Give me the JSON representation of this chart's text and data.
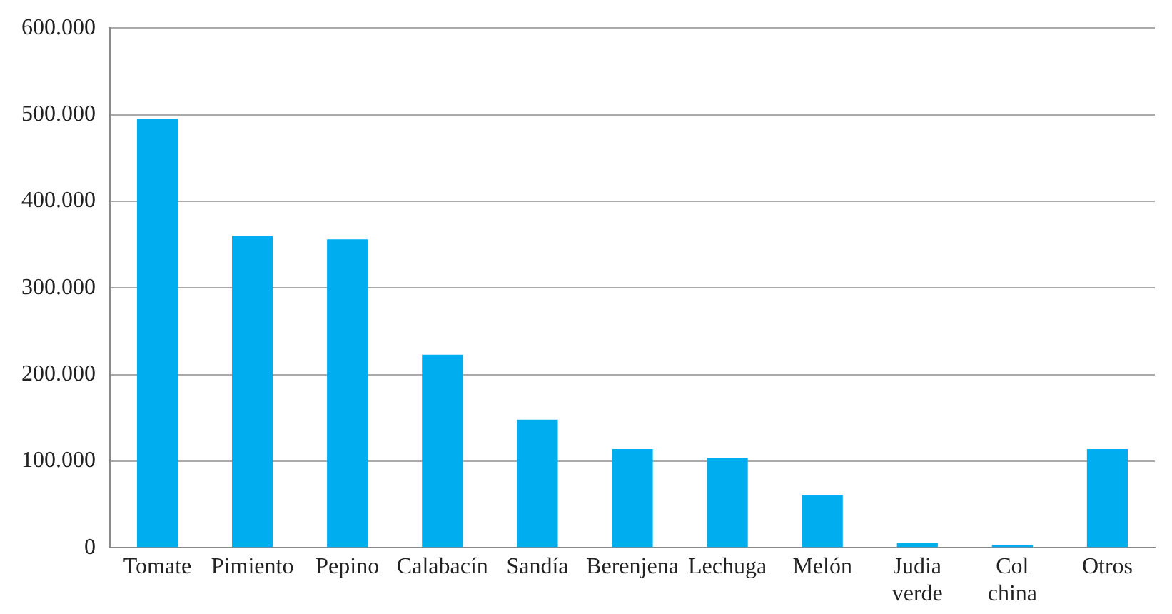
{
  "chart_data": {
    "type": "bar",
    "categories": [
      "Tomate",
      "Pimiento",
      "Pepino",
      "Calabacín",
      "Sandía",
      "Berenjena",
      "Lechuga",
      "Melón",
      "Judia verde",
      "Col china",
      "Otros"
    ],
    "values": [
      495000,
      360000,
      356000,
      223000,
      148000,
      114000,
      104000,
      61000,
      6000,
      3000,
      114000
    ],
    "color": "#00adef",
    "ylim": [
      0,
      600000
    ],
    "yticks": [
      0,
      {
        "value": 100000,
        "label": "100.000"
      },
      {
        "value": 200000,
        "label": "200.000"
      },
      {
        "value": 300000,
        "label": "300.000"
      },
      {
        "value": 400000,
        "label": "400.000"
      },
      {
        "value": 500000,
        "label": "500.000"
      },
      {
        "value": 600000,
        "label": "600.000"
      }
    ],
    "grid": "y",
    "legend": false
  }
}
